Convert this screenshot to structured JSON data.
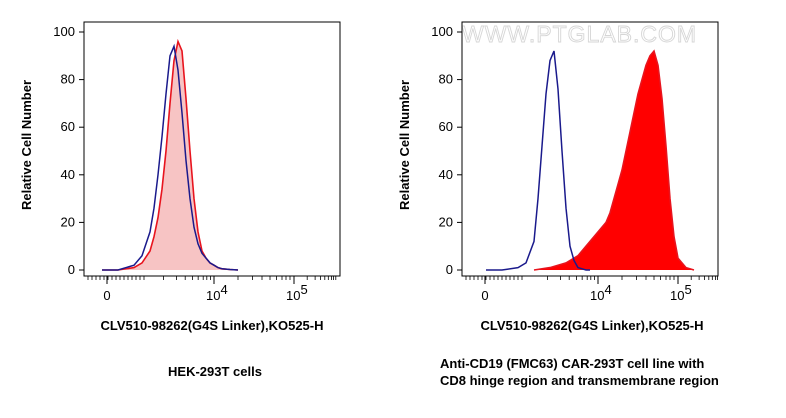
{
  "watermark": "WWW.PTGLAB.COM",
  "colors": {
    "control": "#1a1a8c",
    "sample_line": "#e8141e",
    "sample_fill_light": "#f7c4c4",
    "sample_fill_solid": "#ff0000"
  },
  "chart_data": [
    {
      "type": "area",
      "panel": "left",
      "ylabel": "Relative Cell Number",
      "xlabel": "CLV510-98262(G4S Linker),KO525-H",
      "caption": [
        "HEK-293T cells"
      ],
      "ylim": [
        0,
        100
      ],
      "yticks": [
        0,
        20,
        40,
        60,
        80,
        100
      ],
      "xticks": [
        {
          "label": "0",
          "exp": null
        },
        {
          "label": "10",
          "exp": "4"
        },
        {
          "label": "10",
          "exp": "5"
        }
      ],
      "series": [
        {
          "name": "sample",
          "style": "filled-light",
          "x": [
            2.6,
            2.8,
            3.0,
            3.1,
            3.2,
            3.25,
            3.3,
            3.35,
            3.4,
            3.45,
            3.5,
            3.55,
            3.6,
            3.65,
            3.7,
            3.75,
            3.8,
            3.85,
            3.9,
            3.95,
            4.0,
            4.05,
            4.1,
            4.2,
            4.3
          ],
          "y": [
            0,
            0,
            1,
            3,
            8,
            14,
            22,
            34,
            50,
            70,
            88,
            96,
            92,
            72,
            50,
            30,
            16,
            8,
            5,
            3,
            2,
            1,
            0.5,
            0.2,
            0
          ]
        },
        {
          "name": "control",
          "style": "line",
          "x": [
            2.6,
            2.8,
            3.0,
            3.1,
            3.2,
            3.25,
            3.3,
            3.35,
            3.4,
            3.45,
            3.5,
            3.55,
            3.6,
            3.65,
            3.7,
            3.75,
            3.8,
            3.85,
            3.9,
            3.95,
            4.0,
            4.05,
            4.1,
            4.2,
            4.3
          ],
          "y": [
            0,
            0,
            2,
            6,
            16,
            26,
            40,
            56,
            74,
            90,
            94,
            84,
            66,
            46,
            30,
            18,
            11,
            7,
            5,
            3,
            2,
            1,
            0.5,
            0.2,
            0
          ]
        }
      ]
    },
    {
      "type": "area",
      "panel": "right",
      "ylabel": "Relative Cell Number",
      "xlabel": "CLV510-98262(G4S Linker),KO525-H",
      "caption": [
        "Anti-CD19 (FMC63) CAR-293T cell line with",
        "CD8 hinge region and transmembrane region"
      ],
      "ylim": [
        0,
        100
      ],
      "yticks": [
        0,
        20,
        40,
        60,
        80,
        100
      ],
      "xticks": [
        {
          "label": "0",
          "exp": null
        },
        {
          "label": "10",
          "exp": "4"
        },
        {
          "label": "10",
          "exp": "5"
        }
      ],
      "series": [
        {
          "name": "sample",
          "style": "filled-solid",
          "x": [
            3.2,
            3.4,
            3.6,
            3.75,
            3.85,
            3.95,
            4.05,
            4.1,
            4.15,
            4.2,
            4.25,
            4.3,
            4.35,
            4.4,
            4.45,
            4.5,
            4.55,
            4.6,
            4.65,
            4.7,
            4.75,
            4.8,
            4.85,
            4.9,
            4.95,
            5.0,
            5.1,
            5.2
          ],
          "y": [
            0,
            1,
            3,
            6,
            10,
            14,
            18,
            20,
            24,
            30,
            36,
            42,
            50,
            58,
            66,
            74,
            80,
            86,
            90,
            92,
            86,
            72,
            52,
            30,
            14,
            5,
            1,
            0
          ]
        },
        {
          "name": "control",
          "style": "line",
          "x": [
            2.6,
            2.8,
            3.0,
            3.1,
            3.2,
            3.25,
            3.3,
            3.35,
            3.4,
            3.45,
            3.5,
            3.55,
            3.6,
            3.65,
            3.7,
            3.75,
            3.8,
            3.85,
            3.9
          ],
          "y": [
            0,
            0,
            1,
            3,
            12,
            30,
            52,
            74,
            88,
            92,
            76,
            50,
            26,
            10,
            4,
            1,
            0.5,
            0,
            0
          ]
        }
      ]
    }
  ]
}
